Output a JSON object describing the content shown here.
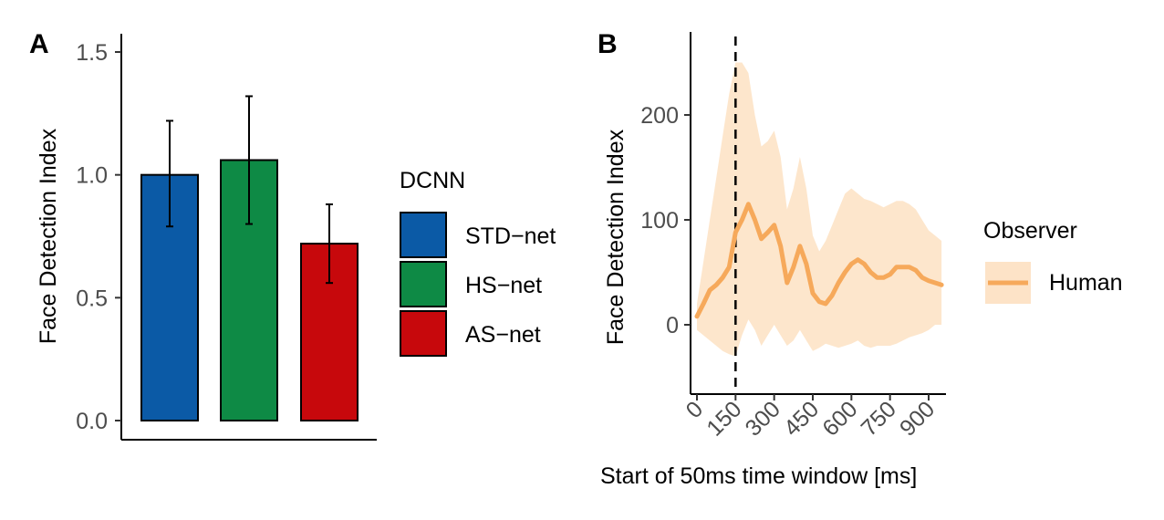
{
  "colors": {
    "std": "#0B5AA6",
    "hs": "#0E8A45",
    "as": "#C7080C",
    "human": "#F6A95B",
    "human_band": "#FDE3C7"
  },
  "chart_data": [
    {
      "panel": "A",
      "type": "bar",
      "ylabel": "Face Detection Index",
      "xlabel": "",
      "ylim": [
        0,
        1.6
      ],
      "yticks": [
        0.0,
        0.5,
        1.0,
        1.5
      ],
      "ytick_labels": [
        "0.0",
        "0.5",
        "1.0",
        "1.5"
      ],
      "categories": [
        "STD−net",
        "HS−net",
        "AS−net"
      ],
      "values": [
        1.0,
        1.06,
        0.72
      ],
      "error_low": [
        0.79,
        0.8,
        0.56
      ],
      "error_high": [
        1.22,
        1.32,
        0.88
      ],
      "legend": {
        "title": "DCNN",
        "entries": [
          "STD−net",
          "HS−net",
          "AS−net"
        ],
        "placement": "right"
      }
    },
    {
      "panel": "B",
      "type": "line",
      "xlabel": "Start of 50ms time window [ms]",
      "ylabel": "Face Detection Index",
      "xlim": [
        -15,
        960
      ],
      "ylim": [
        -65,
        280
      ],
      "xticks": [
        0,
        150,
        300,
        450,
        600,
        750,
        900
      ],
      "xtick_labels": [
        "0",
        "150",
        "300",
        "450",
        "600",
        "750",
        "900"
      ],
      "yticks": [
        0,
        100,
        200
      ],
      "ytick_labels": [
        "0",
        "100",
        "200"
      ],
      "vline_x": 150,
      "series": [
        {
          "name": "Human",
          "x": [
            0,
            25,
            50,
            75,
            100,
            125,
            150,
            175,
            200,
            225,
            250,
            275,
            300,
            325,
            350,
            375,
            400,
            425,
            450,
            475,
            500,
            525,
            550,
            575,
            600,
            625,
            650,
            675,
            700,
            725,
            750,
            775,
            800,
            825,
            850,
            875,
            900,
            925,
            950
          ],
          "y": [
            8,
            20,
            33,
            38,
            45,
            55,
            88,
            100,
            115,
            100,
            82,
            88,
            95,
            75,
            40,
            55,
            75,
            58,
            30,
            22,
            20,
            28,
            40,
            50,
            58,
            62,
            58,
            50,
            45,
            45,
            48,
            55,
            55,
            55,
            52,
            45,
            42,
            40,
            38
          ],
          "lower": [
            -5,
            -10,
            -15,
            -20,
            -25,
            -28,
            -30,
            -10,
            5,
            -5,
            -20,
            -10,
            0,
            -10,
            -20,
            -15,
            -5,
            -15,
            -25,
            -22,
            -18,
            -20,
            -22,
            -20,
            -18,
            -15,
            -20,
            -22,
            -20,
            -20,
            -20,
            -18,
            -15,
            -12,
            -10,
            -8,
            -5,
            0,
            0
          ],
          "upper": [
            20,
            60,
            100,
            140,
            180,
            220,
            250,
            250,
            240,
            200,
            170,
            175,
            185,
            160,
            110,
            130,
            160,
            130,
            85,
            70,
            80,
            95,
            110,
            125,
            130,
            125,
            120,
            118,
            115,
            112,
            115,
            118,
            118,
            115,
            110,
            100,
            90,
            85,
            80
          ]
        }
      ],
      "legend": {
        "title": "Observer",
        "entries": [
          "Human"
        ],
        "placement": "right"
      }
    }
  ]
}
